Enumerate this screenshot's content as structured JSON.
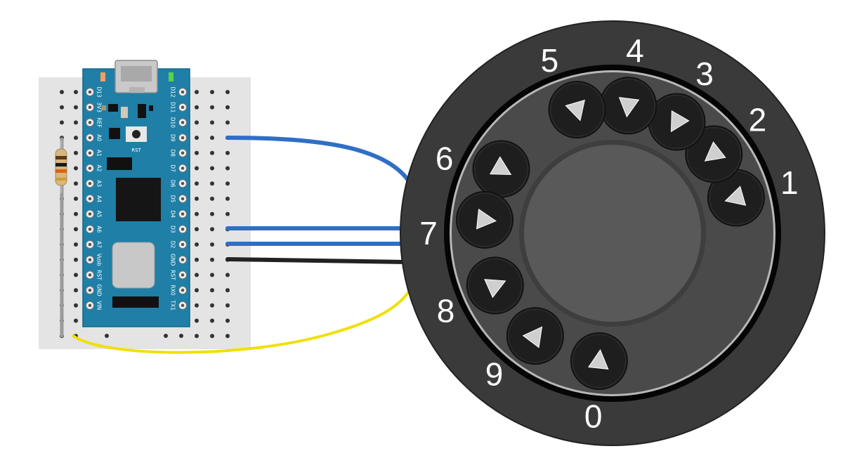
{
  "arduino": {
    "left_pins": [
      "D13",
      "3V3",
      "REF",
      "A0",
      "A1",
      "A2",
      "A3",
      "A4",
      "A5",
      "A6",
      "A7",
      "Vusb",
      "RST",
      "GND",
      "VIN"
    ],
    "right_pins": [
      "D12",
      "D11",
      "D10",
      "D9",
      "D8",
      "D7",
      "D6",
      "D5",
      "D4",
      "D3",
      "D2",
      "GND",
      "RST",
      "RX0",
      "TX1"
    ],
    "reset_label": "RST"
  },
  "dial": {
    "digits": [
      "1",
      "2",
      "3",
      "4",
      "5",
      "6",
      "7",
      "8",
      "9",
      "0"
    ]
  },
  "wires": {
    "d9_color": "#2f6fc5",
    "d3_color": "#2f6fc5",
    "d2_color": "#2f6fc5",
    "gnd_color": "#222222",
    "resistor_color": "#f0e000"
  },
  "colors": {
    "board": "#1f7fa6",
    "breadboard": "#e4e4e4",
    "dial_outer": "#3a3a3a",
    "dial_inner": "#4a4a4a",
    "finger_hole": "#1c1c1c"
  }
}
